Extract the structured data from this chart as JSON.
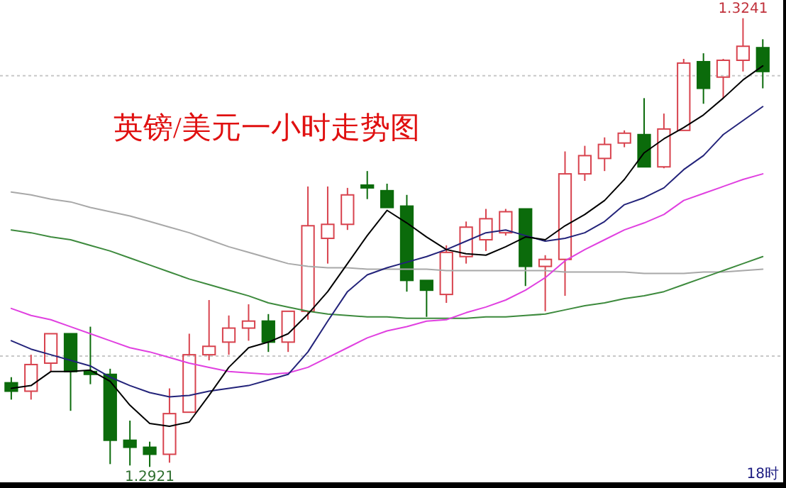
{
  "chart_data": {
    "type": "candlestick",
    "title": "英镑/美元一小时走势图",
    "categories": [
      null,
      null,
      null,
      null,
      null,
      null,
      null,
      null,
      null,
      null,
      null,
      null,
      null,
      null,
      null,
      null,
      null,
      null,
      null,
      null,
      null,
      null,
      null,
      null,
      null,
      null,
      null,
      null,
      null,
      null,
      null,
      null,
      null,
      null,
      null,
      null,
      null,
      null,
      "18时"
    ],
    "ohlc": [
      [
        1.2981,
        1.2985,
        1.2969,
        1.2975
      ],
      [
        1.2975,
        1.3001,
        1.2969,
        1.2994
      ],
      [
        1.2995,
        1.3016,
        1.2989,
        1.3016
      ],
      [
        1.3016,
        1.3016,
        1.2961,
        1.2989
      ],
      [
        1.2989,
        1.3021,
        1.298,
        1.2987
      ],
      [
        1.2987,
        1.2991,
        1.2923,
        1.294
      ],
      [
        1.294,
        1.2954,
        1.2922,
        1.2935
      ],
      [
        1.2935,
        1.2939,
        1.2921,
        1.293
      ],
      [
        1.293,
        1.2977,
        1.2924,
        1.2959
      ],
      [
        1.296,
        1.3016,
        1.296,
        1.3001
      ],
      [
        1.3001,
        1.304,
        1.2997,
        1.3007
      ],
      [
        1.301,
        1.3029,
        1.3001,
        1.302
      ],
      [
        1.302,
        1.3037,
        1.3011,
        1.3025
      ],
      [
        1.3025,
        1.303,
        1.3003,
        1.301
      ],
      [
        1.301,
        1.3032,
        1.3003,
        1.3032
      ],
      [
        1.3032,
        1.3121,
        1.3026,
        1.3093
      ],
      [
        1.3084,
        1.3121,
        1.3066,
        1.3094
      ],
      [
        1.3094,
        1.312,
        1.309,
        1.3115
      ],
      [
        1.3122,
        1.3132,
        1.3112,
        1.312
      ],
      [
        1.3118,
        1.3123,
        1.3106,
        1.3106
      ],
      [
        1.3107,
        1.3115,
        1.3046,
        1.3054
      ],
      [
        1.3054,
        1.3054,
        1.3028,
        1.3047
      ],
      [
        1.3044,
        1.3079,
        1.3038,
        1.3074
      ],
      [
        1.3071,
        1.3096,
        1.3066,
        1.3092
      ],
      [
        1.3083,
        1.3105,
        1.3075,
        1.3098
      ],
      [
        1.3088,
        1.3105,
        1.3086,
        1.3103
      ],
      [
        1.3105,
        1.3105,
        1.305,
        1.3064
      ],
      [
        1.3064,
        1.3072,
        1.3032,
        1.3069
      ],
      [
        1.3069,
        1.3146,
        1.3043,
        1.313
      ],
      [
        1.313,
        1.315,
        1.3125,
        1.3143
      ],
      [
        1.3141,
        1.3156,
        1.3132,
        1.3151
      ],
      [
        1.3152,
        1.3161,
        1.3149,
        1.3159
      ],
      [
        1.3158,
        1.3184,
        1.3135,
        1.3135
      ],
      [
        1.3135,
        1.3173,
        1.3134,
        1.3162
      ],
      [
        1.3161,
        1.3212,
        1.3161,
        1.3209
      ],
      [
        1.321,
        1.3216,
        1.318,
        1.3191
      ],
      [
        1.3199,
        1.3212,
        1.3184,
        1.3211
      ],
      [
        1.3211,
        1.3241,
        1.3203,
        1.3221
      ],
      [
        1.322,
        1.3226,
        1.3191,
        1.3203
      ]
    ],
    "colors": [
      "#0b6b0b",
      "#d8434e",
      "#d8434e",
      "#0b6b0b",
      "#0b6b0b",
      "#0b6b0b",
      "#0b6b0b",
      "#0b6b0b",
      "#d8434e",
      "#d8434e",
      "#d8434e",
      "#d8434e",
      "#d8434e",
      "#0b6b0b",
      "#d8434e",
      "#d8434e",
      "#d8434e",
      "#d8434e",
      "#0b6b0b",
      "#0b6b0b",
      "#0b6b0b",
      "#0b6b0b",
      "#d8434e",
      "#d8434e",
      "#d8434e",
      "#d8434e",
      "#0b6b0b",
      "#d8434e",
      "#d8434e",
      "#d8434e",
      "#d8434e",
      "#d8434e",
      "#0b6b0b",
      "#d8434e",
      "#d8434e",
      "#0b6b0b",
      "#d8434e",
      "#d8434e",
      "#0b6b0b"
    ],
    "series": [
      {
        "type": "line",
        "color": "#a8a8a8",
        "values": [
          1.3117,
          1.3115,
          1.3112,
          1.311,
          1.3106,
          1.3103,
          1.31,
          1.3096,
          1.3092,
          1.3088,
          1.3083,
          1.3078,
          1.3074,
          1.307,
          1.3066,
          1.3064,
          1.3063,
          1.3063,
          1.3062,
          1.3062,
          1.3062,
          1.3062,
          1.3061,
          1.3061,
          1.3061,
          1.3061,
          1.3061,
          1.3061,
          1.306,
          1.306,
          1.306,
          1.306,
          1.3059,
          1.3059,
          1.3059,
          1.306,
          1.306,
          1.3061,
          1.3062
        ]
      },
      {
        "type": "line",
        "color": "#3d8a3d",
        "values": [
          1.309,
          1.3088,
          1.3085,
          1.3083,
          1.3079,
          1.3075,
          1.307,
          1.3065,
          1.306,
          1.3055,
          1.3051,
          1.3047,
          1.3043,
          1.3038,
          1.3035,
          1.3032,
          1.303,
          1.3029,
          1.3028,
          1.3028,
          1.3027,
          1.3027,
          1.3027,
          1.3027,
          1.3028,
          1.3028,
          1.3029,
          1.303,
          1.3033,
          1.3036,
          1.3038,
          1.3041,
          1.3043,
          1.3046,
          1.3051,
          1.3056,
          1.3061,
          1.3066,
          1.3071
        ]
      },
      {
        "type": "line",
        "color": "#e040e0",
        "values": [
          1.3034,
          1.3029,
          1.3026,
          1.3021,
          1.3016,
          1.3011,
          1.3006,
          1.3003,
          1.2999,
          1.2995,
          1.2992,
          1.2989,
          1.2988,
          1.2987,
          1.2988,
          1.2992,
          1.2999,
          1.3006,
          1.3013,
          1.3018,
          1.3021,
          1.3025,
          1.3026,
          1.3031,
          1.3035,
          1.304,
          1.3047,
          1.3056,
          1.3068,
          1.3076,
          1.3083,
          1.309,
          1.3095,
          1.3101,
          1.3111,
          1.3116,
          1.3121,
          1.3126,
          1.313
        ]
      },
      {
        "type": "line",
        "color": "#23237a",
        "values": [
          1.3011,
          1.3005,
          1.3001,
          1.2997,
          1.2993,
          1.2985,
          1.2979,
          1.2974,
          1.2971,
          1.2972,
          1.2975,
          1.2977,
          1.2979,
          1.2983,
          1.2987,
          1.3003,
          1.3025,
          1.3046,
          1.3058,
          1.3063,
          1.3067,
          1.3071,
          1.3076,
          1.3082,
          1.3088,
          1.309,
          1.3086,
          1.3082,
          1.3084,
          1.3088,
          1.3096,
          1.3108,
          1.3113,
          1.312,
          1.3133,
          1.3143,
          1.3158,
          1.3168,
          1.3178
        ]
      },
      {
        "type": "line",
        "color": "#000000",
        "values": [
          1.2977,
          1.2979,
          1.2989,
          1.2989,
          1.299,
          1.2982,
          1.2965,
          1.2952,
          1.295,
          1.2953,
          1.2972,
          1.2992,
          1.3006,
          1.301,
          1.3016,
          1.303,
          1.3046,
          1.3066,
          1.3086,
          1.3104,
          1.3095,
          1.3085,
          1.3076,
          1.3073,
          1.3072,
          1.3078,
          1.3085,
          1.3083,
          1.3093,
          1.3101,
          1.3111,
          1.3126,
          1.3145,
          1.3155,
          1.3163,
          1.3172,
          1.3184,
          1.3197,
          1.3207
        ]
      }
    ],
    "ylim": [
      1.291,
      1.3254
    ],
    "yticks": [
      {
        "value": 1.3,
        "label": null
      },
      {
        "value": 1.32,
        "label": null
      }
    ],
    "grid": "y",
    "annotations": [
      {
        "text": "1.3241",
        "y": 1.3241
      },
      {
        "text": "1.2921",
        "y": 1.2921
      }
    ]
  }
}
